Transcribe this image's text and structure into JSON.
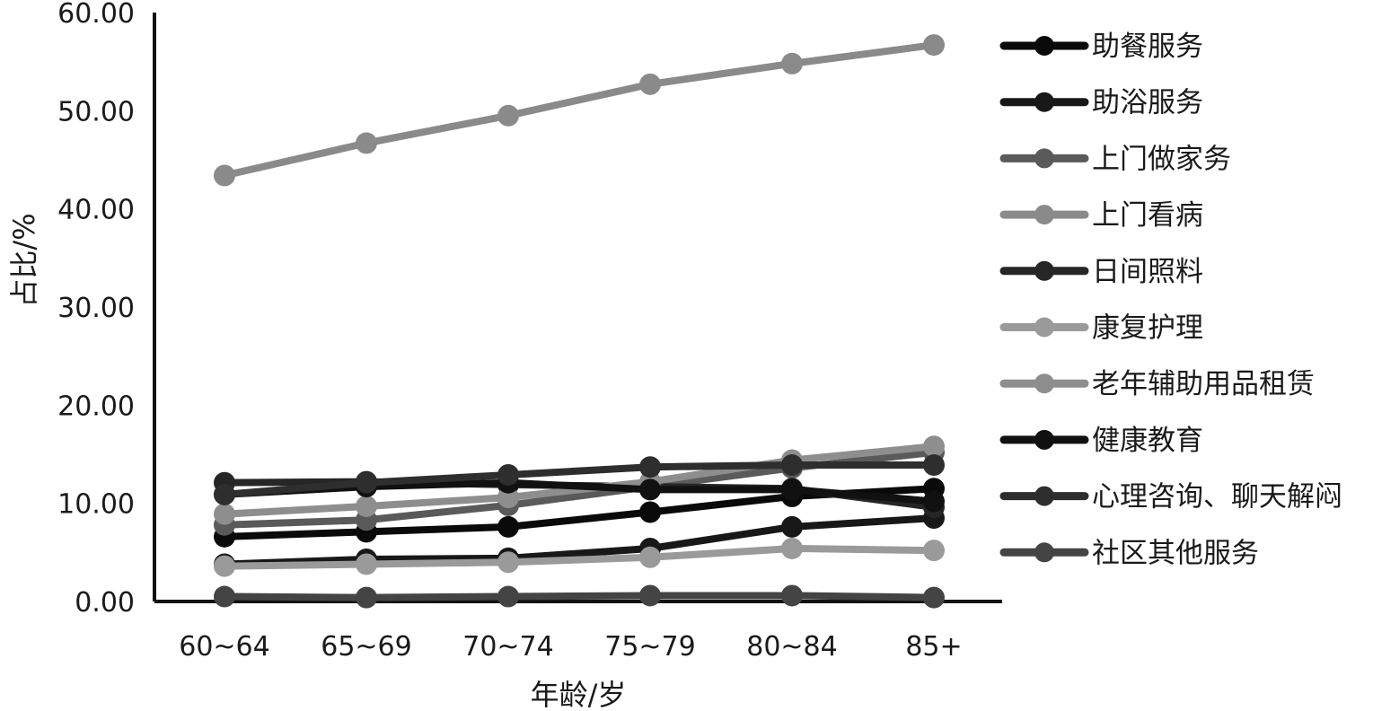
{
  "chart_data": {
    "type": "line",
    "xlabel": "年龄/岁",
    "ylabel": "占比/%",
    "ylim": [
      0,
      60
    ],
    "yticks": [
      "0.00",
      "10.00",
      "20.00",
      "30.00",
      "40.00",
      "50.00",
      "60.00"
    ],
    "categories": [
      "60~64",
      "65~69",
      "70~74",
      "75~79",
      "80~84",
      "85+"
    ],
    "legend_position": "right",
    "grid": false,
    "series": [
      {
        "name": "助餐服务",
        "color": "#0a0a0a",
        "values": [
          6.6,
          7.1,
          7.6,
          9.1,
          10.7,
          11.5
        ]
      },
      {
        "name": "助浴服务",
        "color": "#181818",
        "values": [
          3.8,
          4.3,
          4.4,
          5.4,
          7.6,
          8.5
        ]
      },
      {
        "name": "上门做家务",
        "color": "#5a5a5a",
        "values": [
          7.8,
          8.3,
          9.8,
          11.7,
          13.6,
          15.2
        ]
      },
      {
        "name": "上门看病",
        "color": "#8a8a8a",
        "values": [
          43.4,
          46.7,
          49.5,
          52.7,
          54.8,
          56.7
        ]
      },
      {
        "name": "日间照料",
        "color": "#262626",
        "values": [
          12.1,
          12.2,
          11.9,
          11.7,
          11.5,
          9.6
        ]
      },
      {
        "name": "康复护理",
        "color": "#9a9a9a",
        "values": [
          3.6,
          3.8,
          4.0,
          4.5,
          5.4,
          5.2
        ]
      },
      {
        "name": "老年辅助用品租赁",
        "color": "#8e8e8e",
        "values": [
          8.9,
          9.7,
          10.6,
          12.2,
          14.4,
          15.8
        ]
      },
      {
        "name": "健康教育",
        "color": "#111111",
        "values": [
          10.9,
          11.7,
          12.1,
          11.4,
          11.4,
          10.2
        ]
      },
      {
        "name": "心理咨询、聊天解闷",
        "color": "#2e2e2e",
        "values": [
          10.9,
          12.1,
          12.9,
          13.7,
          13.9,
          13.9
        ]
      },
      {
        "name": "社区其他服务",
        "color": "#444444",
        "values": [
          0.5,
          0.4,
          0.5,
          0.6,
          0.6,
          0.4
        ]
      }
    ]
  }
}
